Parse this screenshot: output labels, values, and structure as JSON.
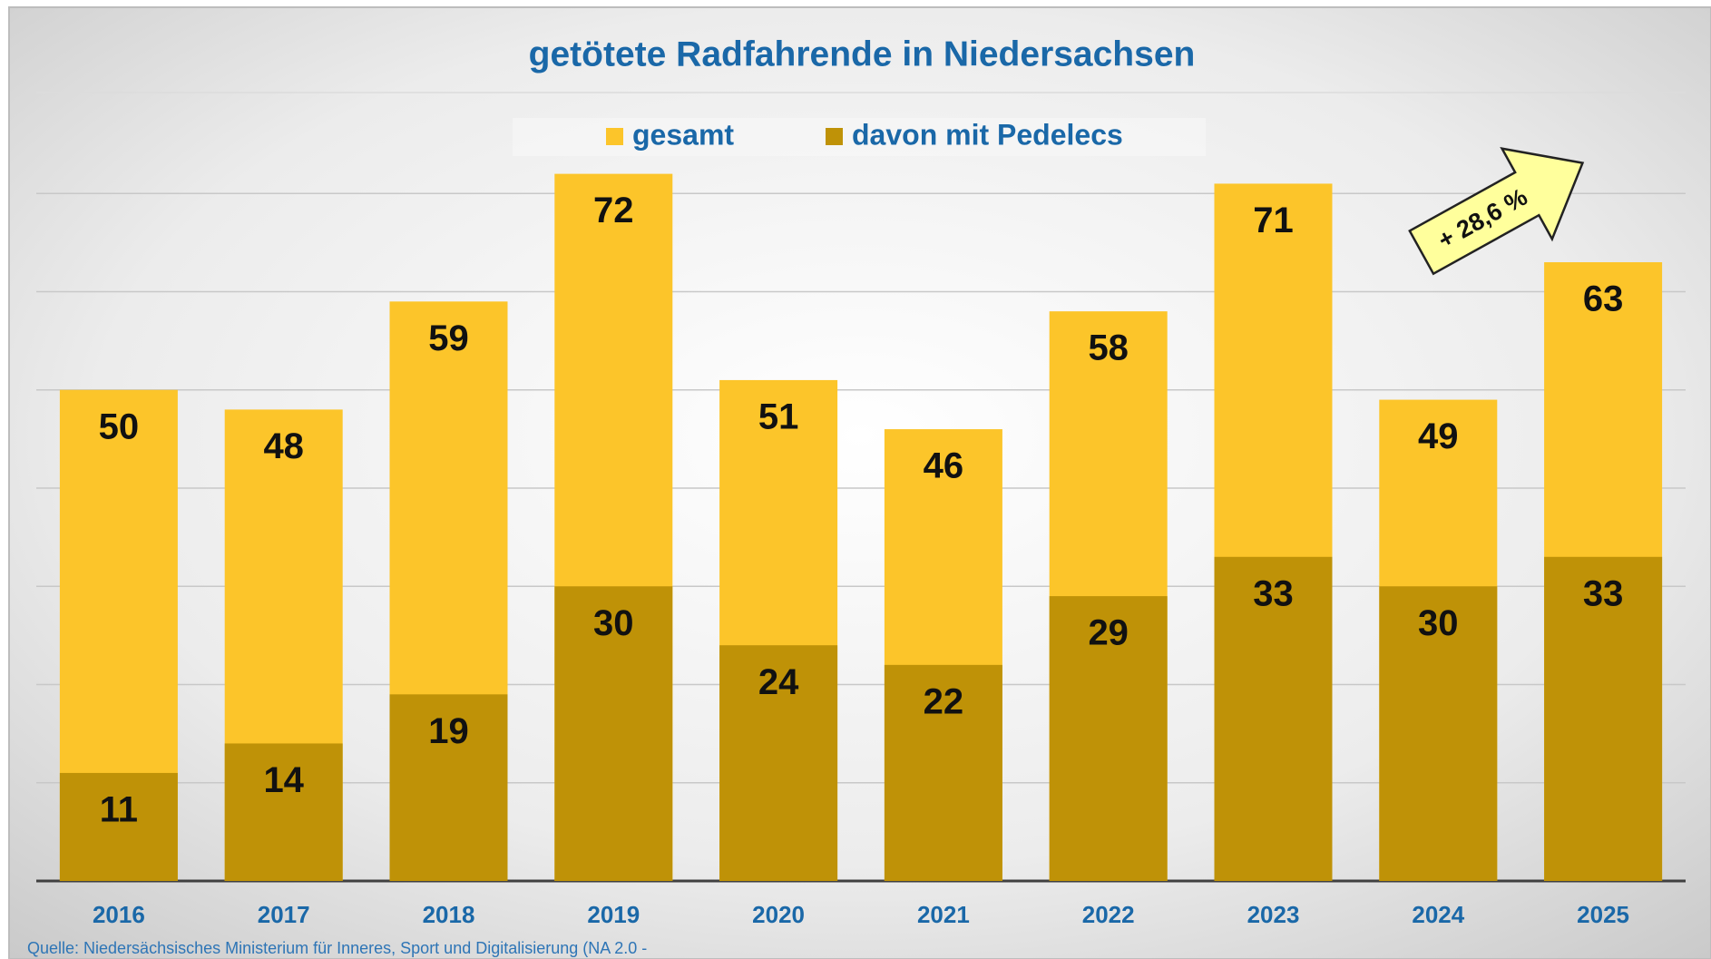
{
  "chart_data": {
    "type": "bar",
    "title": "getötete Radfahrende in Niedersachsen",
    "categories": [
      "2016",
      "2017",
      "2018",
      "2019",
      "2020",
      "2021",
      "2022",
      "2023",
      "2024",
      "2025"
    ],
    "series": [
      {
        "name": "gesamt",
        "color": "#fcc52a",
        "values": [
          50,
          48,
          59,
          72,
          51,
          46,
          58,
          71,
          49,
          63
        ]
      },
      {
        "name": "davon mit Pedelecs",
        "color": "#bf9207",
        "values": [
          11,
          14,
          19,
          30,
          24,
          22,
          29,
          33,
          30,
          33
        ]
      }
    ],
    "ylim": [
      0,
      80
    ],
    "yticks": [
      0,
      10,
      20,
      30,
      40,
      50,
      60,
      70
    ],
    "grid": true,
    "annotation": "+ 28,6 %",
    "source": "Quelle: Niedersächsisches Ministerium für Inneres, Sport und Digitalisierung (NA 2.0 -"
  }
}
